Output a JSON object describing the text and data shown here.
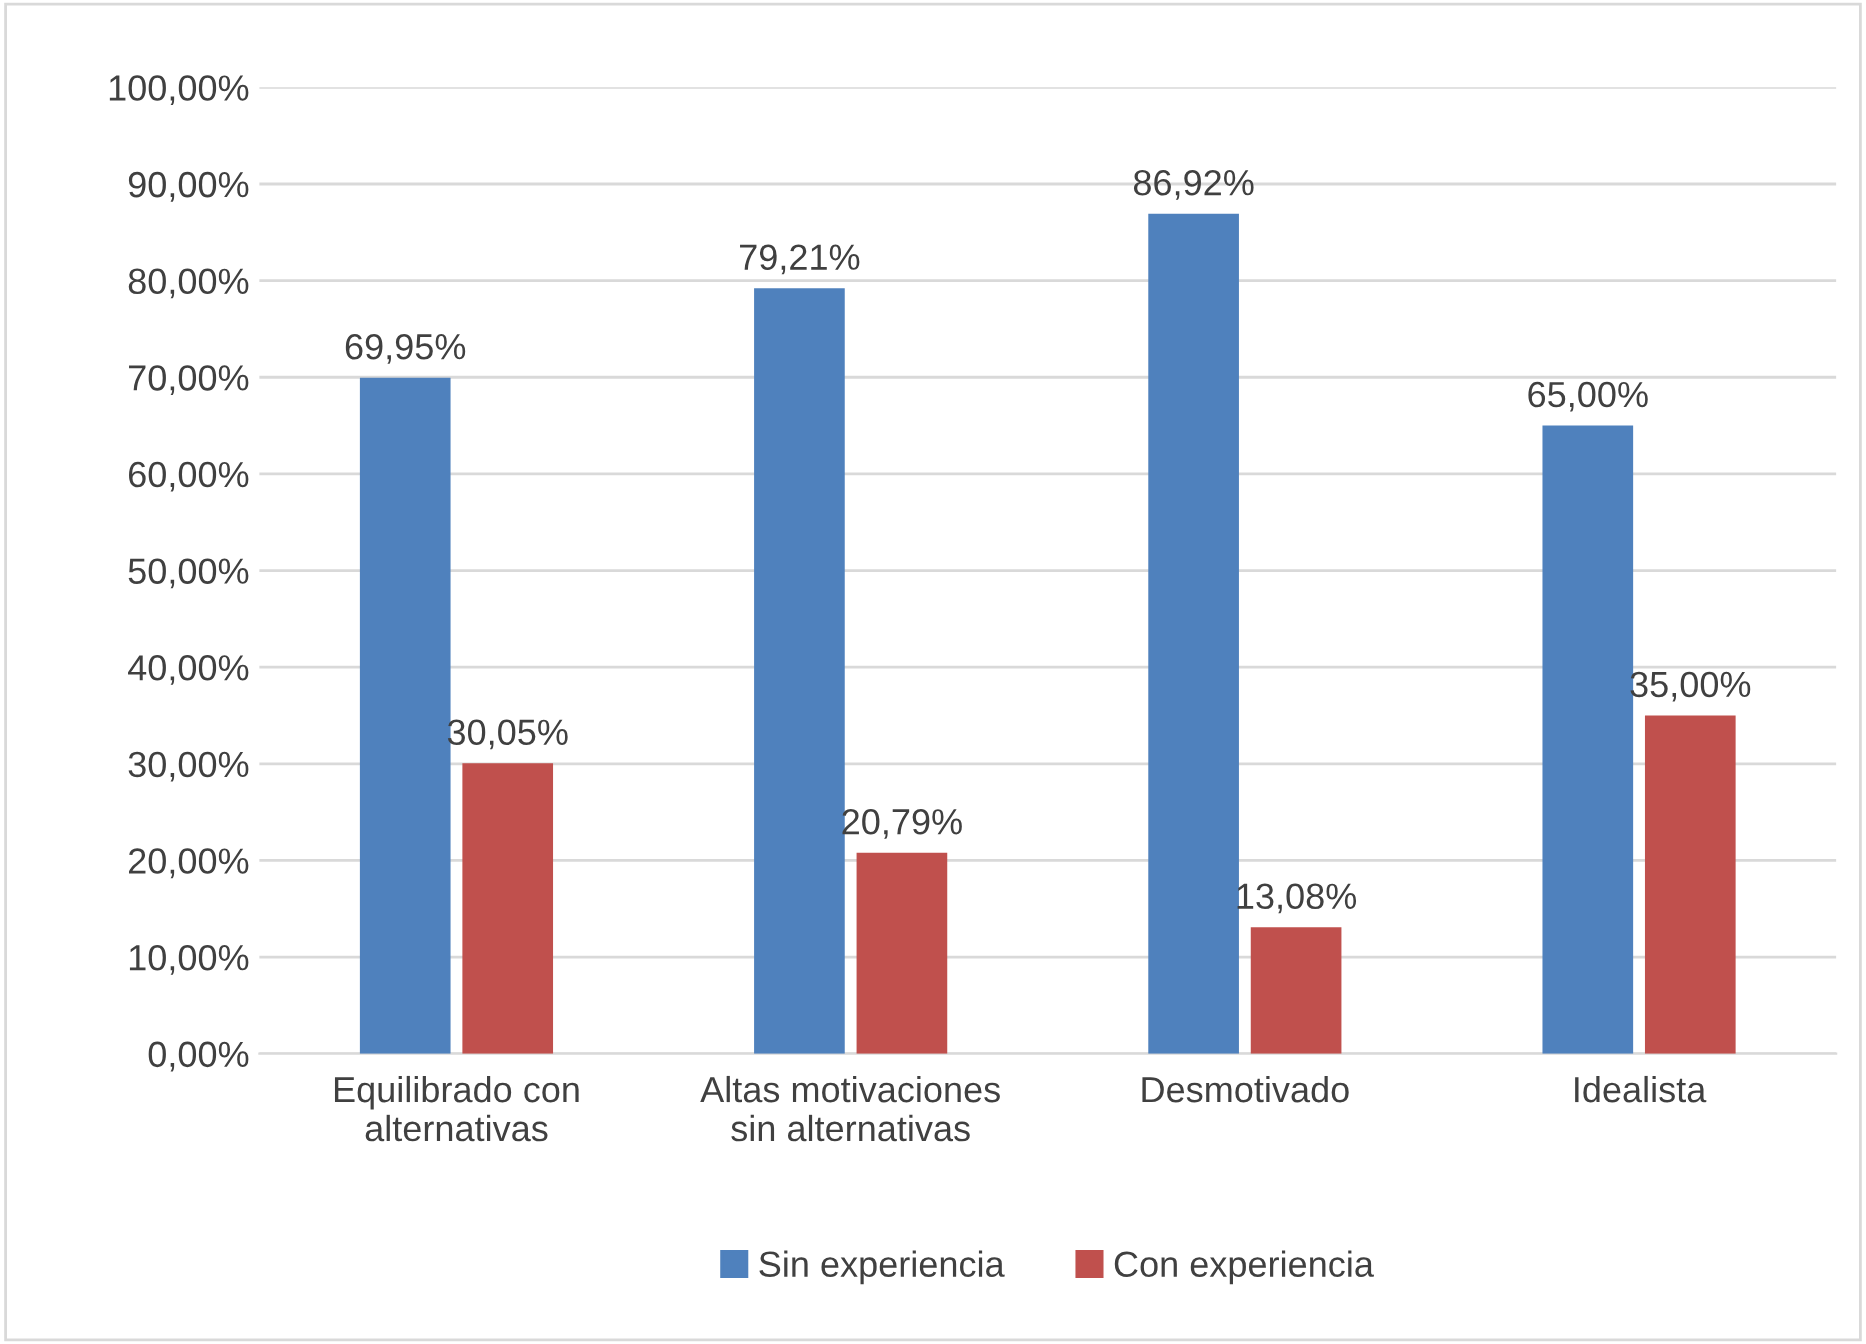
{
  "chart_data": {
    "type": "bar",
    "categories": [
      "Equilibrado con\nalternativas",
      "Altas motivaciones\nsin alternativas",
      "Desmotivado",
      "Idealista"
    ],
    "series": [
      {
        "name": "Sin experiencia",
        "color": "#4f81bd",
        "values": [
          69.95,
          79.21,
          86.92,
          65.0
        ],
        "value_labels": [
          "69,95%",
          "79,21%",
          "86,92%",
          "65,00%"
        ]
      },
      {
        "name": "Con experiencia",
        "color": "#c0504d",
        "values": [
          30.05,
          20.79,
          13.08,
          35.0
        ],
        "value_labels": [
          "30,05%",
          "20,79%",
          "13,08%",
          "35,00%"
        ]
      }
    ],
    "ylim": [
      0,
      100
    ],
    "yticks": [
      {
        "value": 0,
        "label": "0,00%"
      },
      {
        "value": 10,
        "label": "10,00%"
      },
      {
        "value": 20,
        "label": "20,00%"
      },
      {
        "value": 30,
        "label": "30,00%"
      },
      {
        "value": 40,
        "label": "40,00%"
      },
      {
        "value": 50,
        "label": "50,00%"
      },
      {
        "value": 60,
        "label": "60,00%"
      },
      {
        "value": 70,
        "label": "70,00%"
      },
      {
        "value": 80,
        "label": "80,00%"
      },
      {
        "value": 90,
        "label": "90,00%"
      },
      {
        "value": 100,
        "label": "100,00%"
      }
    ],
    "grid": "y",
    "legend": "bottom"
  }
}
